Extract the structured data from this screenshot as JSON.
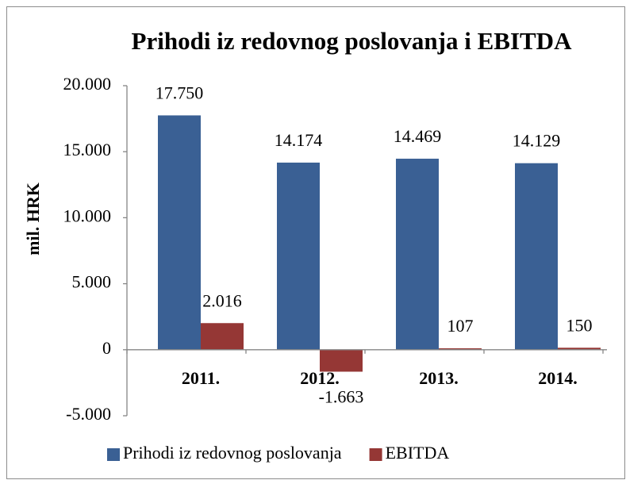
{
  "chart_data": {
    "type": "bar",
    "title": "Prihodi iz redovnog poslovanja i EBITDA",
    "y_label": "mil. HRK",
    "categories": [
      "2011.",
      "2012.",
      "2013.",
      "2014."
    ],
    "series": [
      {
        "name": "Prihodi iz redovnog poslovanja",
        "color": "#3a6094",
        "values": [
          17750,
          14174,
          14469,
          14129
        ],
        "value_labels": [
          "17.750",
          "14.174",
          "14.469",
          "14.129"
        ]
      },
      {
        "name": "EBITDA",
        "color": "#953735",
        "values": [
          2016,
          -1663,
          107,
          150
        ],
        "value_labels": [
          "2.016",
          "-1.663",
          "107",
          "150"
        ]
      }
    ],
    "ylim": [
      -5000,
      20000
    ],
    "yticks": [
      {
        "value": -5000,
        "label": "-5.000"
      },
      0,
      {
        "value": 5000,
        "label": "5.000"
      },
      {
        "value": 10000,
        "label": "10.000"
      },
      {
        "value": 15000,
        "label": "15.000"
      },
      {
        "value": 20000,
        "label": "20.000"
      }
    ],
    "grid": false,
    "legend": "bottom"
  }
}
